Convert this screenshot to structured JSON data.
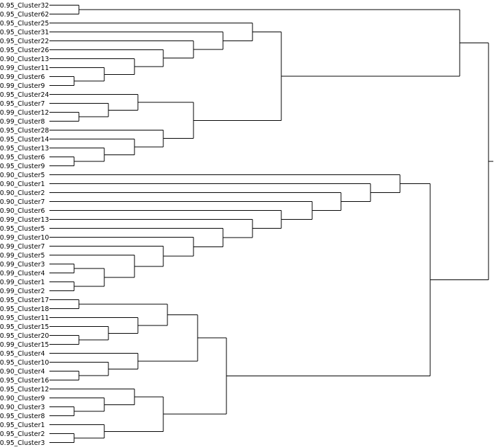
{
  "diagram": {
    "type": "dendrogram",
    "orientation": "left-to-right",
    "leaves": [
      "_0.95_Cluster32",
      "_0.95_Cluster62",
      "_0.95_Cluster25",
      "_0.95_Cluster31",
      "_0.95_Cluster22",
      "_0.95_Cluster26",
      "_0.90_Cluster13",
      "_0.99_Cluster11",
      "_0.99_Cluster6",
      "_0.99_Cluster9",
      "_0.95_Cluster24",
      "_0.95_Cluster7",
      "_0.99_Cluster12",
      "_0.99_Cluster8",
      "_0.95_Cluster28",
      "_0.95_Cluster14",
      "_0.95_Cluster13",
      "_0.95_Cluster6",
      "_0.95_Cluster9",
      "_0.90_Cluster5",
      "_0.90_Cluster1",
      "_0.90_Cluster2",
      "_0.90_Cluster7",
      "_0.90_Cluster6",
      "_0.99_Cluster13",
      "_0.95_Cluster5",
      "_0.99_Cluster10",
      "_0.99_Cluster7",
      "_0.99_Cluster5",
      "_0.99_Cluster3",
      "_0.99_Cluster4",
      "_0.99_Cluster1",
      "_0.99_Cluster2",
      "_0.95_Cluster17",
      "_0.95_Cluster18",
      "_0.95_Cluster11",
      "_0.95_Cluster15",
      "_0.95_Cluster20",
      "_0.99_Cluster15",
      "_0.95_Cluster4",
      "_0.95_Cluster10",
      "_0.90_Cluster4",
      "_0.95_Cluster16",
      "_0.95_Cluster12",
      "_0.90_Cluster9",
      "_0.90_Cluster3",
      "_0.95_Cluster8",
      "_0.95_Cluster1",
      "_0.95_Cluster2",
      "_0.95_Cluster3"
    ],
    "merges": [
      {
        "id": "n1",
        "children": [
          0,
          1
        ],
        "height": 115
      },
      {
        "id": "n2",
        "children": [
          8,
          9
        ],
        "height": 108
      },
      {
        "id": "n3",
        "children": [
          7,
          "n2"
        ],
        "height": 152
      },
      {
        "id": "n4",
        "children": [
          6,
          "n3"
        ],
        "height": 196
      },
      {
        "id": "n5",
        "children": [
          5,
          "n4"
        ],
        "height": 238
      },
      {
        "id": "n6",
        "children": [
          4,
          "n5"
        ],
        "height": 282
      },
      {
        "id": "n7",
        "children": [
          3,
          "n6"
        ],
        "height": 325
      },
      {
        "id": "n8",
        "children": [
          2,
          "n7"
        ],
        "height": 368
      },
      {
        "id": "n9",
        "children": [
          12,
          13
        ],
        "height": 115
      },
      {
        "id": "n10",
        "children": [
          11,
          "n9"
        ],
        "height": 158
      },
      {
        "id": "n11",
        "children": [
          10,
          "n10"
        ],
        "height": 201
      },
      {
        "id": "n12",
        "children": [
          17,
          18
        ],
        "height": 108
      },
      {
        "id": "n13",
        "children": [
          16,
          "n12"
        ],
        "height": 152
      },
      {
        "id": "n14",
        "children": [
          15,
          "n13"
        ],
        "height": 196
      },
      {
        "id": "n15",
        "children": [
          14,
          "n14"
        ],
        "height": 238
      },
      {
        "id": "n16",
        "children": [
          "n11",
          "n15"
        ],
        "height": 282
      },
      {
        "id": "n17",
        "children": [
          "n8",
          "n16"
        ],
        "height": 410
      },
      {
        "id": "n18",
        "children": [
          "n1",
          "n17"
        ],
        "height": 670
      },
      {
        "id": "n19",
        "children": [
          29,
          30
        ],
        "height": 108
      },
      {
        "id": "n20",
        "children": [
          31,
          32
        ],
        "height": 108
      },
      {
        "id": "n21",
        "children": [
          "n19",
          "n20"
        ],
        "height": 152
      },
      {
        "id": "n22",
        "children": [
          28,
          "n21"
        ],
        "height": 196
      },
      {
        "id": "n23",
        "children": [
          27,
          "n22"
        ],
        "height": 238
      },
      {
        "id": "n24",
        "children": [
          26,
          "n23"
        ],
        "height": 282
      },
      {
        "id": "n25",
        "children": [
          25,
          "n24"
        ],
        "height": 325
      },
      {
        "id": "n26",
        "children": [
          24,
          "n25"
        ],
        "height": 368
      },
      {
        "id": "n27",
        "children": [
          23,
          "n26"
        ],
        "height": 410
      },
      {
        "id": "n28",
        "children": [
          22,
          "n27"
        ],
        "height": 455
      },
      {
        "id": "n29",
        "children": [
          21,
          "n28"
        ],
        "height": 497
      },
      {
        "id": "n30",
        "children": [
          20,
          "n29"
        ],
        "height": 540
      },
      {
        "id": "n31",
        "children": [
          19,
          "n30"
        ],
        "height": 583
      },
      {
        "id": "n32",
        "children": [
          33,
          34
        ],
        "height": 115
      },
      {
        "id": "n33",
        "children": [
          37,
          38
        ],
        "height": 115
      },
      {
        "id": "n34",
        "children": [
          36,
          "n33"
        ],
        "height": 158
      },
      {
        "id": "n35",
        "children": [
          35,
          "n34"
        ],
        "height": 201
      },
      {
        "id": "n36",
        "children": [
          "n32",
          "n35"
        ],
        "height": 244
      },
      {
        "id": "n37",
        "children": [
          41,
          42
        ],
        "height": 115
      },
      {
        "id": "n38",
        "children": [
          40,
          "n37"
        ],
        "height": 158
      },
      {
        "id": "n39",
        "children": [
          39,
          "n38"
        ],
        "height": 201
      },
      {
        "id": "n40",
        "children": [
          "n36",
          "n39"
        ],
        "height": 288
      },
      {
        "id": "n41",
        "children": [
          45,
          46
        ],
        "height": 108
      },
      {
        "id": "n42",
        "children": [
          44,
          "n41"
        ],
        "height": 152
      },
      {
        "id": "n43",
        "children": [
          43,
          "n42"
        ],
        "height": 196
      },
      {
        "id": "n44",
        "children": [
          48,
          49
        ],
        "height": 108
      },
      {
        "id": "n45",
        "children": [
          47,
          "n44"
        ],
        "height": 152
      },
      {
        "id": "n46",
        "children": [
          "n43",
          "n45"
        ],
        "height": 238
      },
      {
        "id": "n47",
        "children": [
          "n40",
          "n46"
        ],
        "height": 330
      },
      {
        "id": "n48",
        "children": [
          "n31",
          "n47"
        ],
        "height": 627
      },
      {
        "id": "n49",
        "children": [
          "n18",
          "n48"
        ],
        "height": 712
      }
    ]
  }
}
